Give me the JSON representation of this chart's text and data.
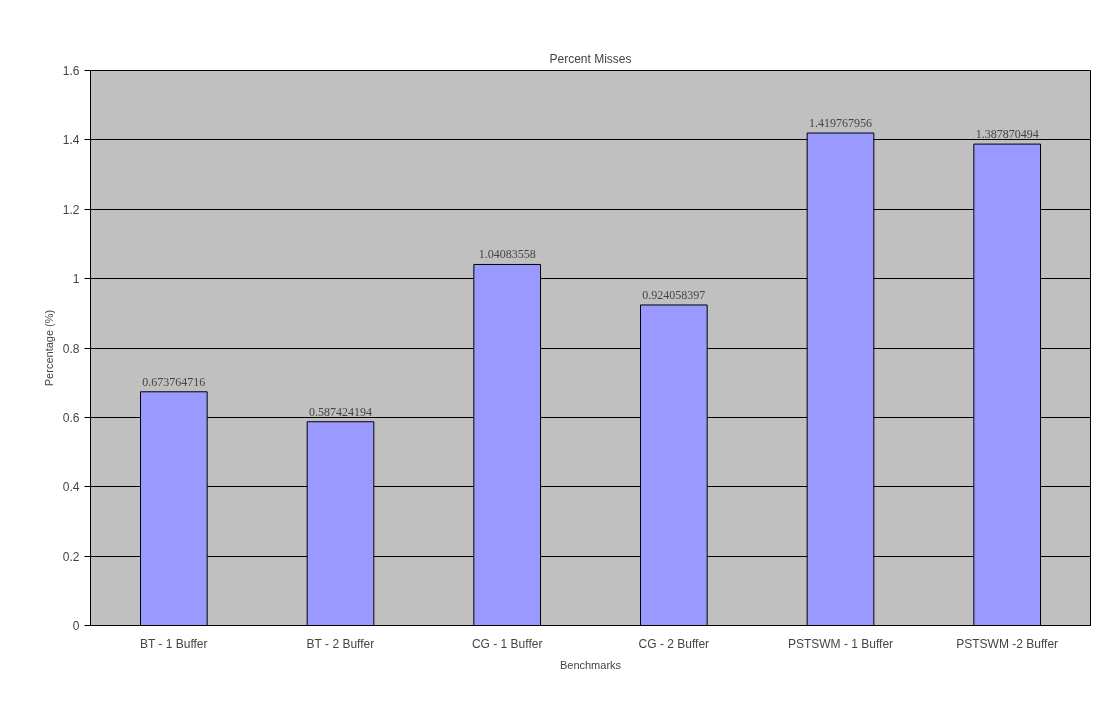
{
  "chart_data": {
    "type": "bar",
    "title": "Percent Misses",
    "xlabel": "Benchmarks",
    "ylabel": "Percentage (%)",
    "categories": [
      "BT - 1 Buffer",
      "BT - 2 Buffer",
      "CG - 1 Buffer",
      "CG - 2 Buffer",
      "PSTSWM - 1 Buffer",
      "PSTSWM -2 Buffer"
    ],
    "values": [
      0.673764716,
      0.587424194,
      1.04083558,
      0.924058397,
      1.419767956,
      1.387870494
    ],
    "color": "#9999ff",
    "ylim": [
      0,
      1.6
    ],
    "yticks": [
      0,
      0.2,
      0.4,
      0.6,
      0.8,
      1,
      1.2,
      1.4,
      1.6
    ],
    "grid": "y",
    "data_labels": true
  }
}
